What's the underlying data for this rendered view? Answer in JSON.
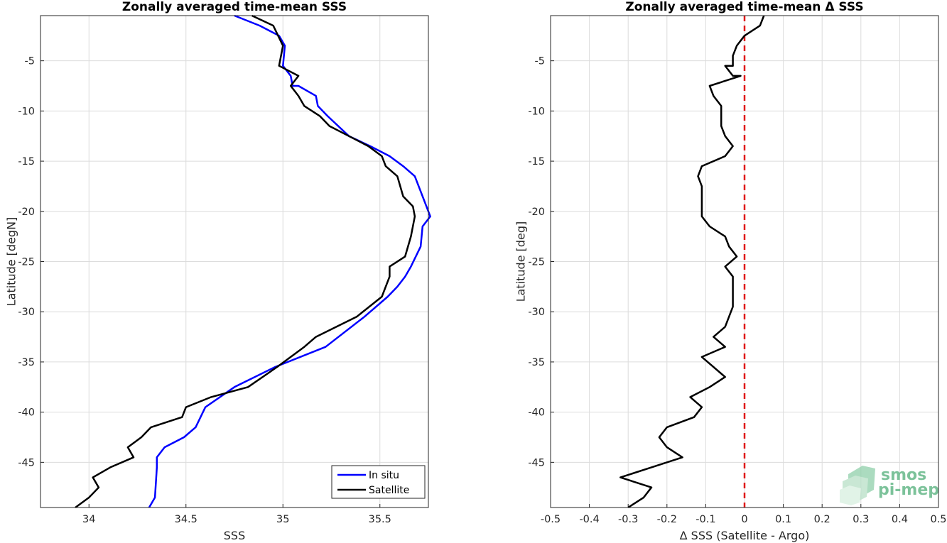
{
  "colors": {
    "in_situ": "#0000ff",
    "satellite": "#000000",
    "zero_line": "#e01818",
    "logo": "#7cc29a"
  },
  "logo": {
    "line1": "smos",
    "line2": "pi-mep"
  },
  "chart_data": [
    {
      "type": "line",
      "title": "Zonally averaged time-mean SSS",
      "xlabel": "SSS",
      "ylabel": "Latitude [degN]",
      "xlim": [
        33.75,
        35.75
      ],
      "ylim": [
        -49.5,
        -0.5
      ],
      "xticks": [
        34,
        34.5,
        35,
        35.5
      ],
      "xtick_labels": [
        "34",
        "34.5",
        "35",
        "35.5"
      ],
      "yticks": [
        -45,
        -40,
        -35,
        -30,
        -25,
        -20,
        -15,
        -10,
        -5
      ],
      "ytick_labels": [
        "-45",
        "-40",
        "-35",
        "-30",
        "-25",
        "-20",
        "-15",
        "-10",
        "-5"
      ],
      "grid": true,
      "legend": {
        "position": "bottom-right",
        "entries": [
          "In situ",
          "Satellite"
        ]
      },
      "series": [
        {
          "name": "In situ",
          "x": [
            34.75,
            34.88,
            34.98,
            35.01,
            35.0,
            35.04,
            35.05,
            35.08,
            35.17,
            35.18,
            35.23,
            35.34,
            35.45,
            35.55,
            35.62,
            35.68,
            35.72,
            35.76,
            35.72,
            35.71,
            35.66,
            35.63,
            35.59,
            35.54,
            35.42,
            35.22,
            34.96,
            34.75,
            34.6,
            34.55,
            34.49,
            34.39,
            34.35,
            34.35,
            34.34,
            34.31
          ],
          "y": [
            -0.5,
            -1.5,
            -2.5,
            -3.5,
            -5.5,
            -6.5,
            -7.5,
            -7.5,
            -8.5,
            -9.5,
            -10.5,
            -12.5,
            -13.5,
            -14.5,
            -15.5,
            -16.5,
            -18.5,
            -20.5,
            -21.5,
            -23.5,
            -25.5,
            -26.5,
            -27.5,
            -28.5,
            -30.5,
            -33.5,
            -35.5,
            -37.5,
            -39.5,
            -41.5,
            -42.5,
            -43.5,
            -44.5,
            -45.5,
            -48.5,
            -49.5
          ]
        },
        {
          "name": "Satellite",
          "x": [
            34.84,
            34.95,
            35.0,
            34.98,
            35.08,
            35.04,
            35.08,
            35.11,
            35.19,
            35.24,
            35.34,
            35.44,
            35.51,
            35.53,
            35.59,
            35.62,
            35.67,
            35.68,
            35.66,
            35.63,
            35.55,
            35.55,
            35.51,
            35.38,
            35.17,
            35.11,
            34.97,
            34.82,
            34.63,
            34.5,
            34.48,
            34.32,
            34.27,
            34.2,
            34.23,
            34.11,
            34.02,
            34.05,
            34.0,
            33.93
          ],
          "y": [
            -0.5,
            -1.5,
            -3.5,
            -5.5,
            -6.5,
            -7.5,
            -8.5,
            -9.5,
            -10.5,
            -11.5,
            -12.5,
            -13.5,
            -14.5,
            -15.5,
            -16.5,
            -18.5,
            -19.5,
            -20.5,
            -22.5,
            -24.5,
            -25.5,
            -26.5,
            -28.5,
            -30.5,
            -32.5,
            -33.5,
            -35.5,
            -37.5,
            -38.5,
            -39.5,
            -40.5,
            -41.5,
            -42.5,
            -43.5,
            -44.5,
            -45.5,
            -46.5,
            -47.5,
            -48.5,
            -49.5
          ]
        }
      ]
    },
    {
      "type": "line",
      "title": "Zonally averaged time-mean Δ SSS",
      "xlabel": "Δ SSS (Satellite - Argo)",
      "ylabel": "Latitude [deg]",
      "xlim": [
        -0.5,
        0.5
      ],
      "ylim": [
        -49.5,
        -0.5
      ],
      "xticks": [
        -0.5,
        -0.4,
        -0.3,
        -0.2,
        -0.1,
        0,
        0.1,
        0.2,
        0.3,
        0.4,
        0.5
      ],
      "xtick_labels": [
        "-0.5",
        "-0.4",
        "-0.3",
        "-0.2",
        "-0.1",
        "0",
        "0.1",
        "0.2",
        "0.3",
        "0.4",
        "0.5"
      ],
      "yticks": [
        -45,
        -40,
        -35,
        -30,
        -25,
        -20,
        -15,
        -10,
        -5
      ],
      "ytick_labels": [
        "-45",
        "-40",
        "-35",
        "-30",
        "-25",
        "-20",
        "-15",
        "-10",
        "-5"
      ],
      "grid": true,
      "reference_line": {
        "x": 0,
        "style": "dashed"
      },
      "series": [
        {
          "x": [
            0.05,
            0.04,
            0.0,
            -0.02,
            -0.03,
            -0.03,
            -0.05,
            -0.03,
            -0.01,
            -0.09,
            -0.08,
            -0.06,
            -0.06,
            -0.05,
            -0.03,
            -0.05,
            -0.11,
            -0.12,
            -0.11,
            -0.11,
            -0.09,
            -0.05,
            -0.04,
            -0.02,
            -0.05,
            -0.03,
            -0.03,
            -0.03,
            -0.05,
            -0.08,
            -0.05,
            -0.11,
            -0.05,
            -0.09,
            -0.14,
            -0.11,
            -0.13,
            -0.2,
            -0.22,
            -0.2,
            -0.16,
            -0.24,
            -0.32,
            -0.24,
            -0.26,
            -0.3
          ],
          "y": [
            -0.5,
            -1.5,
            -2.5,
            -3.5,
            -4.5,
            -5.5,
            -5.5,
            -6.5,
            -6.5,
            -7.5,
            -8.5,
            -9.5,
            -11.5,
            -12.5,
            -13.5,
            -14.5,
            -15.5,
            -16.5,
            -17.5,
            -20.5,
            -21.5,
            -22.5,
            -23.5,
            -24.5,
            -25.5,
            -26.5,
            -27.5,
            -29.5,
            -31.5,
            -32.5,
            -33.5,
            -34.5,
            -36.5,
            -37.5,
            -38.5,
            -39.5,
            -40.5,
            -41.5,
            -42.5,
            -43.5,
            -44.5,
            -45.5,
            -46.5,
            -47.5,
            -48.5,
            -49.5
          ]
        }
      ]
    }
  ]
}
